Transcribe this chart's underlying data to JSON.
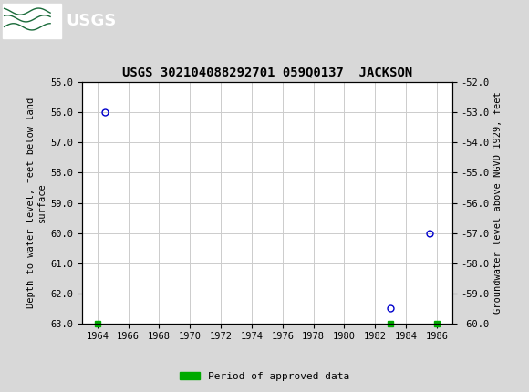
{
  "title": "USGS 302104088292701 059Q0137  JACKSON",
  "data_points_x": [
    1964.5,
    1983.0,
    1985.5
  ],
  "data_points_y": [
    56.0,
    62.5,
    60.0
  ],
  "approved_data_x": [
    1964.0,
    1983.0,
    1986.0
  ],
  "approved_data_y": [
    63.0,
    63.0,
    63.0
  ],
  "xlim": [
    1963.0,
    1987.0
  ],
  "xticks": [
    1964,
    1966,
    1968,
    1970,
    1972,
    1974,
    1976,
    1978,
    1980,
    1982,
    1984,
    1986
  ],
  "ylim_left_bottom": 63.0,
  "ylim_left_top": 55.0,
  "ylim_right_bottom": -60.0,
  "ylim_right_top": -52.0,
  "yticks_left": [
    55.0,
    56.0,
    57.0,
    58.0,
    59.0,
    60.0,
    61.0,
    62.0,
    63.0
  ],
  "yticks_right": [
    -52.0,
    -53.0,
    -54.0,
    -55.0,
    -56.0,
    -57.0,
    -58.0,
    -59.0,
    -60.0
  ],
  "ylabel_left": "Depth to water level, feet below land\nsurface",
  "ylabel_right": "Groundwater level above NGVD 1929, feet",
  "bg_color": "#d8d8d8",
  "plot_bg_color": "#ffffff",
  "header_color": "#1a6b3a",
  "marker_color": "#0000cc",
  "approved_color": "#00aa00",
  "grid_color": "#cccccc",
  "legend_label": "Period of approved data",
  "figure_width": 5.8,
  "figure_height": 4.3,
  "dpi": 100
}
